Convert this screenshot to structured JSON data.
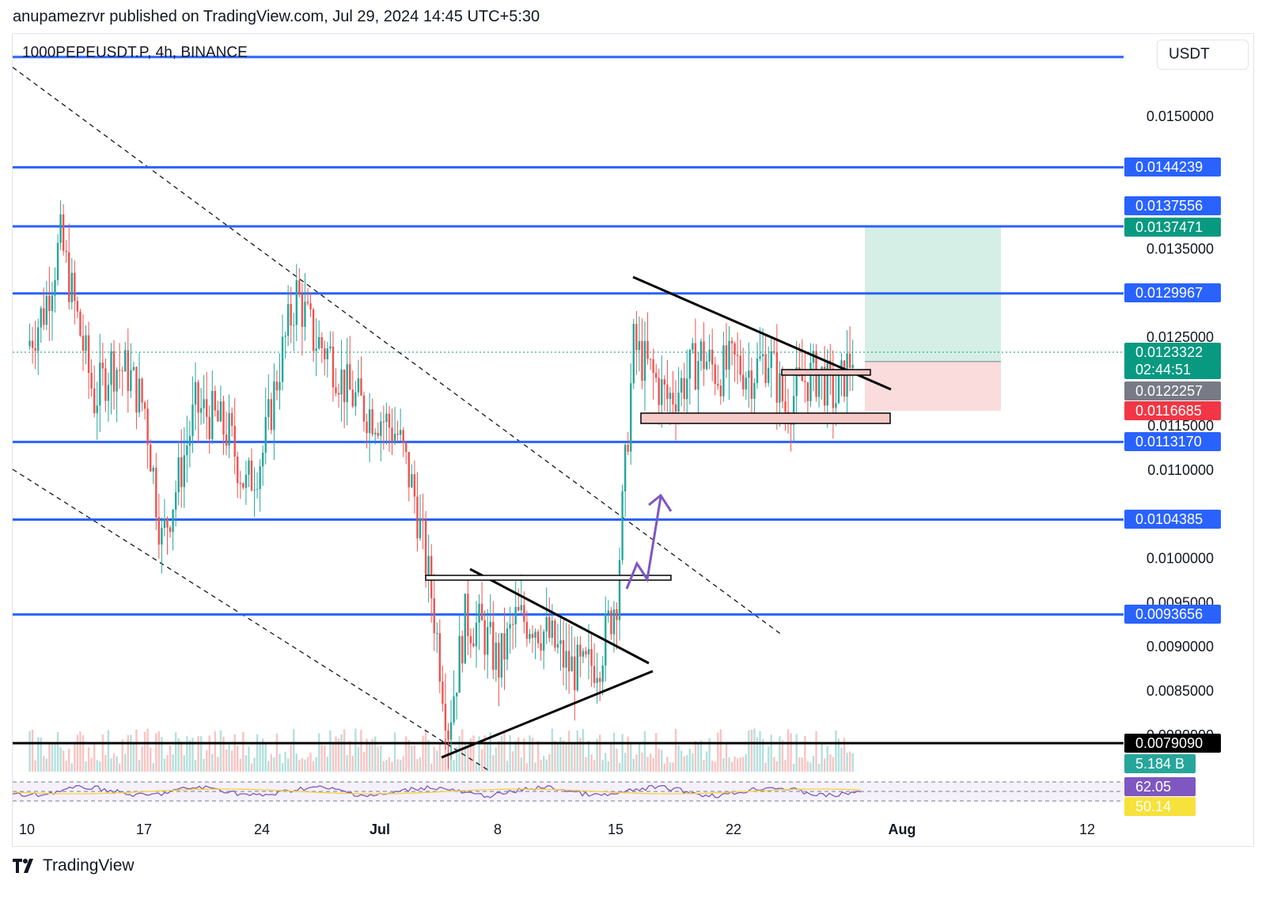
{
  "header": {
    "published": "anupamezrvr published on TradingView.com, Jul 29, 2024 14:45 UTC+5:30"
  },
  "symbol_line": "1000PEPEUSDT.P, 4h, BINANCE",
  "currency_button": "USDT",
  "brand": {
    "name": "TradingView"
  },
  "colors": {
    "up": "#26a69a",
    "down": "#ef5350",
    "level_line": "#2962ff",
    "rsi": "#7e57c2",
    "target_zone": "#d6efe6",
    "stop_zone": "#fadcdc",
    "last_price": "#089981"
  },
  "price_badges": [
    {
      "value": "0.0144239",
      "color": "#2962ff"
    },
    {
      "value": "0.0137556",
      "color": "#2962ff"
    },
    {
      "value": "0.0137471",
      "color": "#089981"
    },
    {
      "value": "0.0129967",
      "color": "#2962ff"
    },
    {
      "value": "0.0123322",
      "color": "#089981"
    },
    {
      "value": "02:44:51",
      "color": "#089981"
    },
    {
      "value": "0.0122257",
      "color": "#787b86"
    },
    {
      "value": "0.0116685",
      "color": "#f23645"
    },
    {
      "value": "0.0113170",
      "color": "#2962ff"
    },
    {
      "value": "0.0104385",
      "color": "#2962ff"
    },
    {
      "value": "0.0093656",
      "color": "#2962ff"
    },
    {
      "value": "0.0079090",
      "color": "#000000"
    },
    {
      "value": "5.184 B",
      "color": "#26a69a"
    },
    {
      "value": "62.05",
      "color": "#7e57c2"
    },
    {
      "value": "50.14",
      "color": "#f7e13b"
    }
  ],
  "chart_data": {
    "type": "candlestick",
    "timeframe": "4h",
    "y_ticks": [
      "0.0150000",
      "0.0135000",
      "0.0125000",
      "0.0115000",
      "0.0110000",
      "0.0100000",
      "0.0095000",
      "0.0090000",
      "0.0085000",
      "0.0080000"
    ],
    "x_ticks": [
      "10",
      "17",
      "24",
      "Jul",
      "8",
      "15",
      "22",
      "Aug",
      "12"
    ],
    "horizontal_levels": [
      0.0144239,
      0.0137556,
      0.0129967,
      0.011317,
      0.0104385,
      0.0093656,
      0.007909
    ],
    "last_price": 0.0123322,
    "position": {
      "entry": 0.0122257,
      "target": 0.0137471,
      "stop": 0.0116685
    },
    "price_path": [
      [
        "Jun 10",
        0.0124
      ],
      [
        "Jun 11",
        0.0128
      ],
      [
        "Jun 12",
        0.0136
      ],
      [
        "Jun 13",
        0.0127
      ],
      [
        "Jun 14",
        0.0118
      ],
      [
        "Jun 15",
        0.0122
      ],
      [
        "Jun 16",
        0.0121
      ],
      [
        "Jun 17",
        0.0117
      ],
      [
        "Jun 18",
        0.0102
      ],
      [
        "Jun 19",
        0.0109
      ],
      [
        "Jun 20",
        0.0117
      ],
      [
        "Jun 21",
        0.0116
      ],
      [
        "Jun 22",
        0.0114
      ],
      [
        "Jun 23",
        0.0108
      ],
      [
        "Jun 24",
        0.0112
      ],
      [
        "Jun 25",
        0.0122
      ],
      [
        "Jun 26",
        0.013
      ],
      [
        "Jun 27",
        0.0125
      ],
      [
        "Jun 28",
        0.0123
      ],
      [
        "Jun 29",
        0.0119
      ],
      [
        "Jun 30",
        0.0117
      ],
      [
        "Jul 1",
        0.0116
      ],
      [
        "Jul 2",
        0.0114
      ],
      [
        "Jul 3",
        0.0107
      ],
      [
        "Jul 4",
        0.0096
      ],
      [
        "Jul 5",
        0.0081
      ],
      [
        "Jul 6",
        0.0093
      ],
      [
        "Jul 7",
        0.0092
      ],
      [
        "Jul 8",
        0.0088
      ],
      [
        "Jul 9",
        0.0093
      ],
      [
        "Jul 10",
        0.0093
      ],
      [
        "Jul 11",
        0.0091
      ],
      [
        "Jul 12",
        0.0088
      ],
      [
        "Jul 13",
        0.0087
      ],
      [
        "Jul 14",
        0.0089
      ],
      [
        "Jul 15",
        0.0096
      ],
      [
        "Jul 16",
        0.0124
      ],
      [
        "Jul 17",
        0.0121
      ],
      [
        "Jul 18",
        0.0118
      ],
      [
        "Jul 19",
        0.012
      ],
      [
        "Jul 20",
        0.0123
      ],
      [
        "Jul 21",
        0.0121
      ],
      [
        "Jul 22",
        0.0122
      ],
      [
        "Jul 23",
        0.0121
      ],
      [
        "Jul 24",
        0.0123
      ],
      [
        "Jul 25",
        0.0117
      ],
      [
        "Jul 26",
        0.012
      ],
      [
        "Jul 27",
        0.0121
      ],
      [
        "Jul 28",
        0.0118
      ],
      [
        "Jul 29",
        0.0123322
      ]
    ],
    "rsi": {
      "value": 62.05,
      "signal": 50.14
    },
    "volume_last": "5.184 B"
  }
}
